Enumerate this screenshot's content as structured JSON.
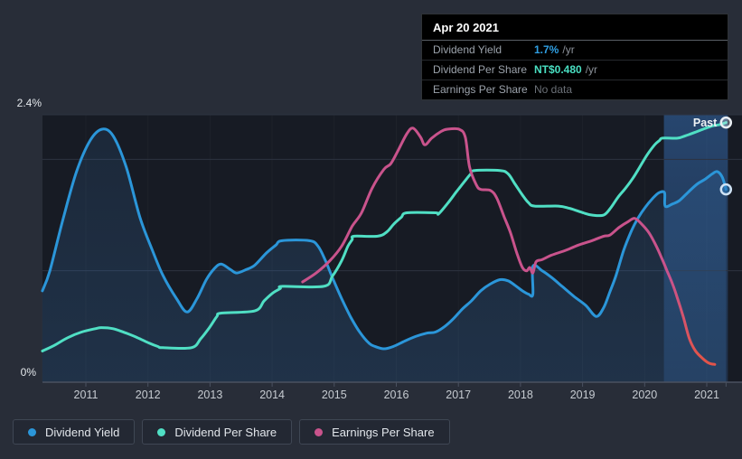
{
  "tooltip": {
    "date": "Apr 20 2021",
    "rows": [
      {
        "label": "Dividend Yield",
        "value": "1.7%",
        "suffix": "/yr",
        "value_color": "#2f9fe3"
      },
      {
        "label": "Dividend Per Share",
        "value": "NT$0.480",
        "suffix": "/yr",
        "value_color": "#49dfc2"
      },
      {
        "label": "Earnings Per Share",
        "value": "No data",
        "suffix": "",
        "value_color": "#6b7077"
      }
    ]
  },
  "legend": [
    {
      "label": "Dividend Yield",
      "color": "#2b96d9"
    },
    {
      "label": "Dividend Per Share",
      "color": "#50dfc4"
    },
    {
      "label": "Earnings Per Share",
      "color": "#c9538c"
    }
  ],
  "past_label": "Past",
  "chart_data": {
    "type": "line",
    "title": "Dividend history chart",
    "x_range": [
      2010.3,
      2021.45
    ],
    "y_range": [
      0,
      2.4
    ],
    "y_top_label": "2.4%",
    "y_bottom_label": "0%",
    "y_gridlines_pct": [
      1,
      2
    ],
    "x_tick_years": [
      2011,
      2012,
      2013,
      2014,
      2015,
      2016,
      2017,
      2018,
      2019,
      2020,
      2021
    ],
    "x_labels": [
      "2011",
      "2012",
      "2013",
      "2014",
      "2015",
      "2016",
      "2017",
      "2018",
      "2019",
      "2020",
      "2021"
    ],
    "highlight_region": {
      "start_year": 2020.31,
      "end_year": 2021.34,
      "color": "#3a7ac9"
    },
    "eps_fade": {
      "from": [
        2020.39,
        0.92
      ],
      "to": [
        2020.9,
        0.23
      ],
      "from_color": "#c9538c",
      "to_color": "#e2544a"
    },
    "series": [
      {
        "name": "Dividend Yield",
        "id": "dividend-yield",
        "color": "#2b96d9",
        "area_fill": true,
        "end_marker": true,
        "points": [
          [
            2010.3,
            0.82
          ],
          [
            2010.42,
            1.0
          ],
          [
            2010.64,
            1.48
          ],
          [
            2010.85,
            1.89
          ],
          [
            2011.07,
            2.17
          ],
          [
            2011.26,
            2.27
          ],
          [
            2011.44,
            2.21
          ],
          [
            2011.65,
            1.93
          ],
          [
            2011.87,
            1.48
          ],
          [
            2012.06,
            1.2
          ],
          [
            2012.24,
            0.96
          ],
          [
            2012.46,
            0.75
          ],
          [
            2012.63,
            0.63
          ],
          [
            2012.79,
            0.75
          ],
          [
            2012.94,
            0.92
          ],
          [
            2013.07,
            1.02
          ],
          [
            2013.18,
            1.06
          ],
          [
            2013.33,
            1.01
          ],
          [
            2013.43,
            0.98
          ],
          [
            2013.58,
            1.01
          ],
          [
            2013.72,
            1.05
          ],
          [
            2013.91,
            1.16
          ],
          [
            2014.06,
            1.23
          ],
          [
            2014.16,
            1.27
          ],
          [
            2014.6,
            1.27
          ],
          [
            2014.74,
            1.22
          ],
          [
            2014.86,
            1.09
          ],
          [
            2014.97,
            0.94
          ],
          [
            2015.12,
            0.75
          ],
          [
            2015.27,
            0.58
          ],
          [
            2015.41,
            0.45
          ],
          [
            2015.56,
            0.35
          ],
          [
            2015.66,
            0.32
          ],
          [
            2015.8,
            0.3
          ],
          [
            2015.95,
            0.32
          ],
          [
            2016.14,
            0.37
          ],
          [
            2016.31,
            0.41
          ],
          [
            2016.49,
            0.44
          ],
          [
            2016.63,
            0.45
          ],
          [
            2016.78,
            0.5
          ],
          [
            2016.92,
            0.57
          ],
          [
            2017.07,
            0.66
          ],
          [
            2017.21,
            0.73
          ],
          [
            2017.36,
            0.82
          ],
          [
            2017.51,
            0.88
          ],
          [
            2017.67,
            0.92
          ],
          [
            2017.8,
            0.91
          ],
          [
            2017.91,
            0.87
          ],
          [
            2018.03,
            0.82
          ],
          [
            2018.13,
            0.79
          ],
          [
            2018.2,
            0.79
          ],
          [
            2018.2,
            1.04
          ],
          [
            2018.35,
            1.0
          ],
          [
            2018.5,
            0.94
          ],
          [
            2018.67,
            0.86
          ],
          [
            2018.86,
            0.77
          ],
          [
            2019.05,
            0.69
          ],
          [
            2019.22,
            0.59
          ],
          [
            2019.34,
            0.67
          ],
          [
            2019.44,
            0.81
          ],
          [
            2019.54,
            0.96
          ],
          [
            2019.66,
            1.18
          ],
          [
            2019.78,
            1.35
          ],
          [
            2019.89,
            1.47
          ],
          [
            2020.01,
            1.57
          ],
          [
            2020.13,
            1.65
          ],
          [
            2020.23,
            1.7
          ],
          [
            2020.32,
            1.7
          ],
          [
            2020.33,
            1.58
          ],
          [
            2020.45,
            1.6
          ],
          [
            2020.56,
            1.63
          ],
          [
            2020.71,
            1.71
          ],
          [
            2020.85,
            1.78
          ],
          [
            2020.97,
            1.82
          ],
          [
            2021.09,
            1.87
          ],
          [
            2021.17,
            1.89
          ],
          [
            2021.25,
            1.84
          ],
          [
            2021.31,
            1.73
          ]
        ]
      },
      {
        "name": "Dividend Per Share",
        "id": "dividend-per-share",
        "color": "#50dfc4",
        "area_fill": false,
        "end_marker": true,
        "points": [
          [
            2010.3,
            0.28
          ],
          [
            2010.49,
            0.33
          ],
          [
            2010.71,
            0.4
          ],
          [
            2010.93,
            0.45
          ],
          [
            2011.15,
            0.48
          ],
          [
            2011.25,
            0.49
          ],
          [
            2011.44,
            0.48
          ],
          [
            2011.65,
            0.44
          ],
          [
            2011.83,
            0.4
          ],
          [
            2012.02,
            0.35
          ],
          [
            2012.16,
            0.32
          ],
          [
            2012.24,
            0.31
          ],
          [
            2012.7,
            0.31
          ],
          [
            2012.85,
            0.39
          ],
          [
            2012.99,
            0.49
          ],
          [
            2013.11,
            0.59
          ],
          [
            2013.18,
            0.62
          ],
          [
            2013.72,
            0.64
          ],
          [
            2013.87,
            0.73
          ],
          [
            2014.01,
            0.8
          ],
          [
            2014.13,
            0.84
          ],
          [
            2014.17,
            0.86
          ],
          [
            2014.83,
            0.86
          ],
          [
            2014.97,
            0.95
          ],
          [
            2015.12,
            1.09
          ],
          [
            2015.22,
            1.22
          ],
          [
            2015.29,
            1.28
          ],
          [
            2015.32,
            1.31
          ],
          [
            2015.7,
            1.31
          ],
          [
            2015.85,
            1.35
          ],
          [
            2015.96,
            1.42
          ],
          [
            2016.08,
            1.48
          ],
          [
            2016.17,
            1.52
          ],
          [
            2016.63,
            1.52
          ],
          [
            2016.68,
            1.51
          ],
          [
            2016.82,
            1.6
          ],
          [
            2016.97,
            1.71
          ],
          [
            2017.11,
            1.81
          ],
          [
            2017.2,
            1.87
          ],
          [
            2017.26,
            1.9
          ],
          [
            2017.67,
            1.9
          ],
          [
            2017.8,
            1.87
          ],
          [
            2017.91,
            1.78
          ],
          [
            2018.03,
            1.68
          ],
          [
            2018.13,
            1.61
          ],
          [
            2018.23,
            1.58
          ],
          [
            2018.61,
            1.58
          ],
          [
            2018.79,
            1.56
          ],
          [
            2019.01,
            1.52
          ],
          [
            2019.15,
            1.5
          ],
          [
            2019.34,
            1.5
          ],
          [
            2019.46,
            1.57
          ],
          [
            2019.57,
            1.66
          ],
          [
            2019.69,
            1.74
          ],
          [
            2019.81,
            1.83
          ],
          [
            2019.92,
            1.93
          ],
          [
            2020.04,
            2.04
          ],
          [
            2020.16,
            2.13
          ],
          [
            2020.24,
            2.17
          ],
          [
            2020.29,
            2.19
          ],
          [
            2020.53,
            2.19
          ],
          [
            2020.65,
            2.21
          ],
          [
            2020.8,
            2.24
          ],
          [
            2020.94,
            2.27
          ],
          [
            2021.09,
            2.3
          ],
          [
            2021.2,
            2.31
          ],
          [
            2021.31,
            2.33
          ]
        ]
      },
      {
        "name": "Earnings Per Share",
        "id": "earnings-per-share",
        "color": "#c9538c",
        "area_fill": false,
        "end_marker": false,
        "fade_to_red": true,
        "points": [
          [
            2014.49,
            0.9
          ],
          [
            2014.71,
            0.98
          ],
          [
            2014.93,
            1.09
          ],
          [
            2015.12,
            1.22
          ],
          [
            2015.29,
            1.4
          ],
          [
            2015.44,
            1.52
          ],
          [
            2015.61,
            1.74
          ],
          [
            2015.8,
            1.91
          ],
          [
            2015.91,
            1.96
          ],
          [
            2016.02,
            2.07
          ],
          [
            2016.17,
            2.23
          ],
          [
            2016.27,
            2.28
          ],
          [
            2016.39,
            2.2
          ],
          [
            2016.46,
            2.13
          ],
          [
            2016.57,
            2.19
          ],
          [
            2016.72,
            2.25
          ],
          [
            2016.82,
            2.27
          ],
          [
            2017.01,
            2.27
          ],
          [
            2017.11,
            2.2
          ],
          [
            2017.18,
            1.93
          ],
          [
            2017.29,
            1.77
          ],
          [
            2017.36,
            1.73
          ],
          [
            2017.52,
            1.72
          ],
          [
            2017.62,
            1.65
          ],
          [
            2017.74,
            1.48
          ],
          [
            2017.84,
            1.34
          ],
          [
            2017.94,
            1.16
          ],
          [
            2018.03,
            1.03
          ],
          [
            2018.1,
            1.0
          ],
          [
            2018.15,
            1.03
          ],
          [
            2018.2,
            0.98
          ],
          [
            2018.25,
            1.08
          ],
          [
            2018.35,
            1.1
          ],
          [
            2018.5,
            1.14
          ],
          [
            2018.71,
            1.18
          ],
          [
            2018.93,
            1.23
          ],
          [
            2019.15,
            1.27
          ],
          [
            2019.34,
            1.31
          ],
          [
            2019.44,
            1.32
          ],
          [
            2019.59,
            1.39
          ],
          [
            2019.73,
            1.44
          ],
          [
            2019.84,
            1.47
          ],
          [
            2019.95,
            1.42
          ],
          [
            2020.07,
            1.34
          ],
          [
            2020.17,
            1.24
          ],
          [
            2020.27,
            1.12
          ],
          [
            2020.36,
            1.0
          ],
          [
            2020.45,
            0.88
          ],
          [
            2020.53,
            0.75
          ],
          [
            2020.62,
            0.59
          ],
          [
            2020.72,
            0.39
          ],
          [
            2020.82,
            0.28
          ],
          [
            2020.94,
            0.21
          ],
          [
            2021.04,
            0.17
          ],
          [
            2021.13,
            0.16
          ]
        ]
      }
    ]
  },
  "colors": {
    "page_bg": "#282d38",
    "plot_bg": "#171b24",
    "gridline": "#2d3340",
    "axis": "#4a5160",
    "year_label": "#c6cbd1",
    "pct_label": "#e4e8ec"
  }
}
